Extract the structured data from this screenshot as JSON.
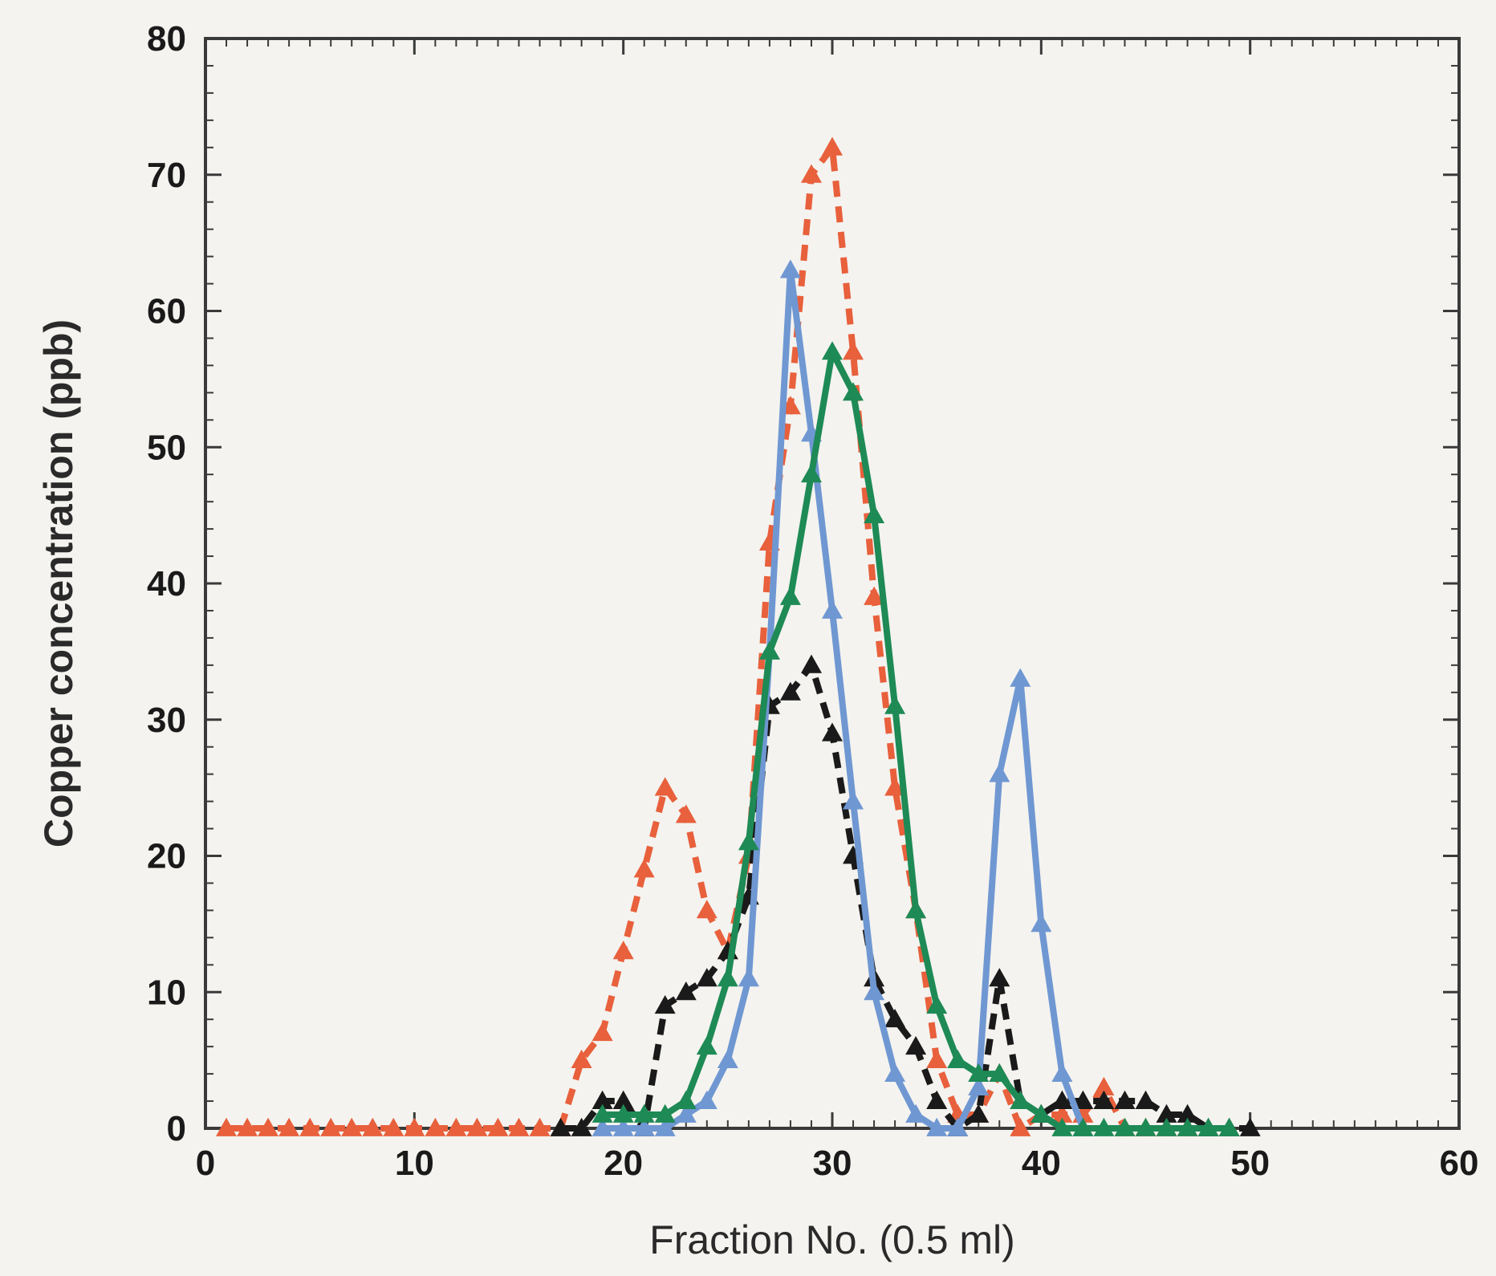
{
  "chart_data": {
    "type": "line",
    "xlabel": "Fraction No. (0.5 ml)",
    "ylabel": "Copper concentration (ppb)",
    "xlim": [
      0,
      60
    ],
    "ylim": [
      0,
      80
    ],
    "xticks": [
      0,
      10,
      20,
      30,
      40,
      50,
      60
    ],
    "yticks": [
      0,
      10,
      20,
      30,
      40,
      50,
      60,
      70,
      80
    ],
    "grid": false,
    "legend": "none",
    "marker": "triangle",
    "series": [
      {
        "color": "#e8603c",
        "dash": true,
        "x": [
          1,
          2,
          3,
          4,
          5,
          6,
          7,
          8,
          9,
          10,
          11,
          12,
          13,
          14,
          15,
          16,
          17,
          18,
          19,
          20,
          21,
          22,
          23,
          24,
          25,
          26,
          27,
          28,
          29,
          30,
          31,
          32,
          33,
          34,
          35,
          36,
          37,
          38,
          39,
          40,
          41,
          42,
          43,
          44,
          45,
          46,
          47
        ],
        "y": [
          0,
          0,
          0,
          0,
          0,
          0,
          0,
          0,
          0,
          0,
          0,
          0,
          0,
          0,
          0,
          0,
          0,
          5,
          7,
          13,
          19,
          25,
          23,
          16,
          13,
          20,
          43,
          53,
          70,
          72,
          57,
          39,
          25,
          16,
          5,
          1,
          1,
          4,
          0,
          1,
          1,
          1,
          3,
          0,
          0,
          0,
          0
        ]
      },
      {
        "color": "#1a1a1a",
        "dash": true,
        "x": [
          17,
          18,
          19,
          20,
          21,
          22,
          23,
          24,
          25,
          26,
          27,
          28,
          29,
          30,
          31,
          32,
          33,
          34,
          35,
          36,
          37,
          38,
          39,
          40,
          41,
          42,
          43,
          44,
          45,
          46,
          47,
          48,
          49,
          50
        ],
        "y": [
          0,
          0,
          2,
          2,
          0,
          9,
          10,
          11,
          13,
          17,
          31,
          32,
          34,
          29,
          20,
          11,
          8,
          6,
          2,
          0,
          1,
          11,
          2,
          1,
          2,
          2,
          2,
          2,
          2,
          1,
          1,
          0,
          0,
          0
        ]
      },
      {
        "color": "#6f97d2",
        "dash": false,
        "x": [
          19,
          20,
          21,
          22,
          23,
          24,
          25,
          26,
          27,
          28,
          29,
          30,
          31,
          32,
          33,
          34,
          35,
          36,
          37,
          38,
          39,
          40,
          41,
          42
        ],
        "y": [
          0,
          0,
          0,
          0,
          1,
          2,
          5,
          11,
          35,
          63,
          51,
          38,
          24,
          10,
          4,
          1,
          0,
          0,
          3,
          26,
          33,
          15,
          4,
          0
        ]
      },
      {
        "color": "#1e8a55",
        "dash": false,
        "x": [
          19,
          20,
          21,
          22,
          23,
          24,
          25,
          26,
          27,
          28,
          29,
          30,
          31,
          32,
          33,
          34,
          35,
          36,
          37,
          38,
          39,
          40,
          41,
          42,
          43,
          44,
          45,
          46,
          47,
          48,
          49
        ],
        "y": [
          1,
          1,
          1,
          1,
          2,
          6,
          11,
          21,
          35,
          39,
          48,
          57,
          54,
          45,
          31,
          16,
          9,
          5,
          4,
          4,
          2,
          1,
          0,
          0,
          0,
          0,
          0,
          0,
          0,
          0,
          0
        ]
      }
    ]
  }
}
